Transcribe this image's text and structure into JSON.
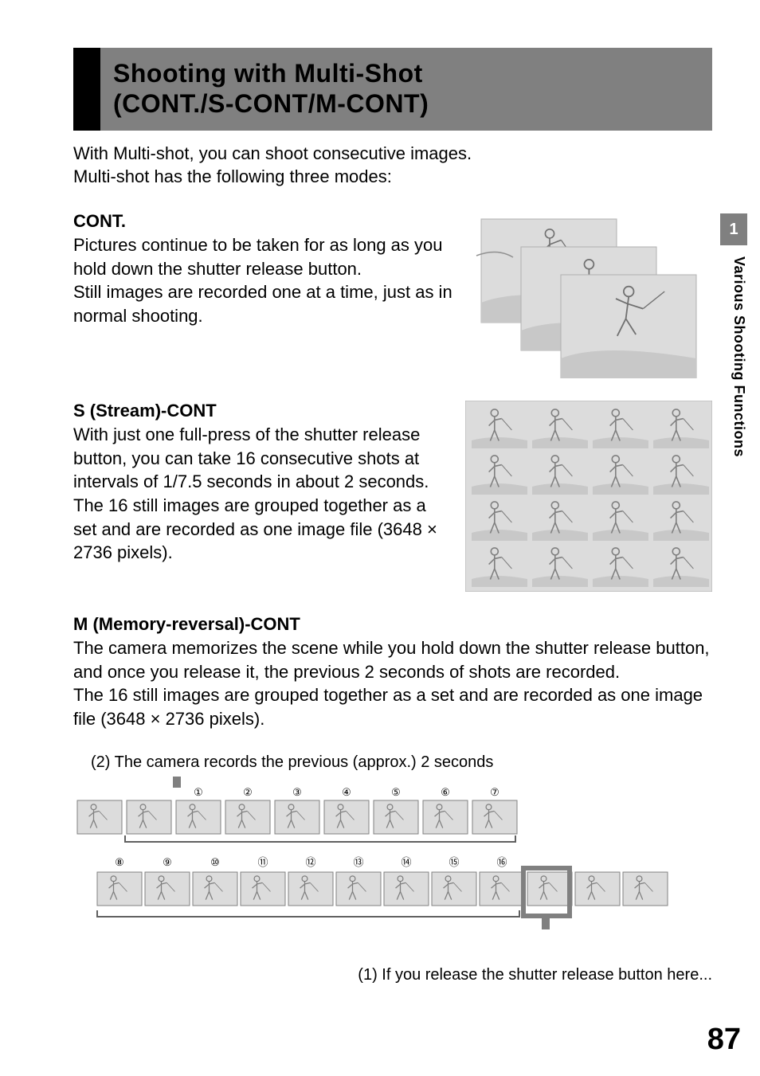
{
  "title": {
    "line1": "Shooting with Multi-Shot",
    "line2": "(CONT./S-CONT/M-CONT)"
  },
  "intro": "With Multi-shot, you can shoot consecutive images.\nMulti-shot has the following three modes:",
  "cont": {
    "heading": "CONT.",
    "body": "Pictures continue to be taken for as long as you hold down the shutter release button.\nStill images are recorded one at a time, just as in normal shooting."
  },
  "scont": {
    "heading": "S (Stream)-CONT",
    "body": "With just one full-press of the shutter release button, you can take 16 consecutive shots at intervals of 1/7.5 seconds in about 2 seconds.\nThe 16 still images are grouped together as a set and are recorded as one image file (3648 × 2736 pixels)."
  },
  "mcont": {
    "heading": "M (Memory-reversal)-CONT",
    "body": "The camera memorizes the scene while you hold down the shutter release button, and once you release it, the previous 2 seconds of shots are recorded.\nThe 16 still images are grouped together as a set and are recorded as one image file (3648 × 2736 pixels)."
  },
  "timeline": {
    "caption_top": "(2) The camera records the previous (approx.) 2 seconds",
    "caption_bottom": "(1) If you release the shutter release button here...",
    "top_numbers": [
      "①",
      "②",
      "③",
      "④",
      "⑤",
      "⑥",
      "⑦"
    ],
    "bottom_numbers": [
      "⑧",
      "⑨",
      "⑩",
      "⑪",
      "⑫",
      "⑬",
      "⑭",
      "⑮",
      "⑯"
    ],
    "colors": {
      "frame_fill": "#dcdcdc",
      "frame_stroke": "#808080",
      "bracket_stroke": "#606060",
      "highlight_stroke": "#808080",
      "marker_fill": "#808080",
      "figure_stroke": "#808080"
    }
  },
  "sidebar": {
    "tab": "1",
    "label": "Various Shooting Functions"
  },
  "page_number": "87",
  "illust": {
    "colors": {
      "panel_fill": "#dcdcdc",
      "panel_stroke": "#b0b0b0",
      "ground_fill": "#c8c8c8",
      "figure_stroke": "#707070"
    }
  }
}
